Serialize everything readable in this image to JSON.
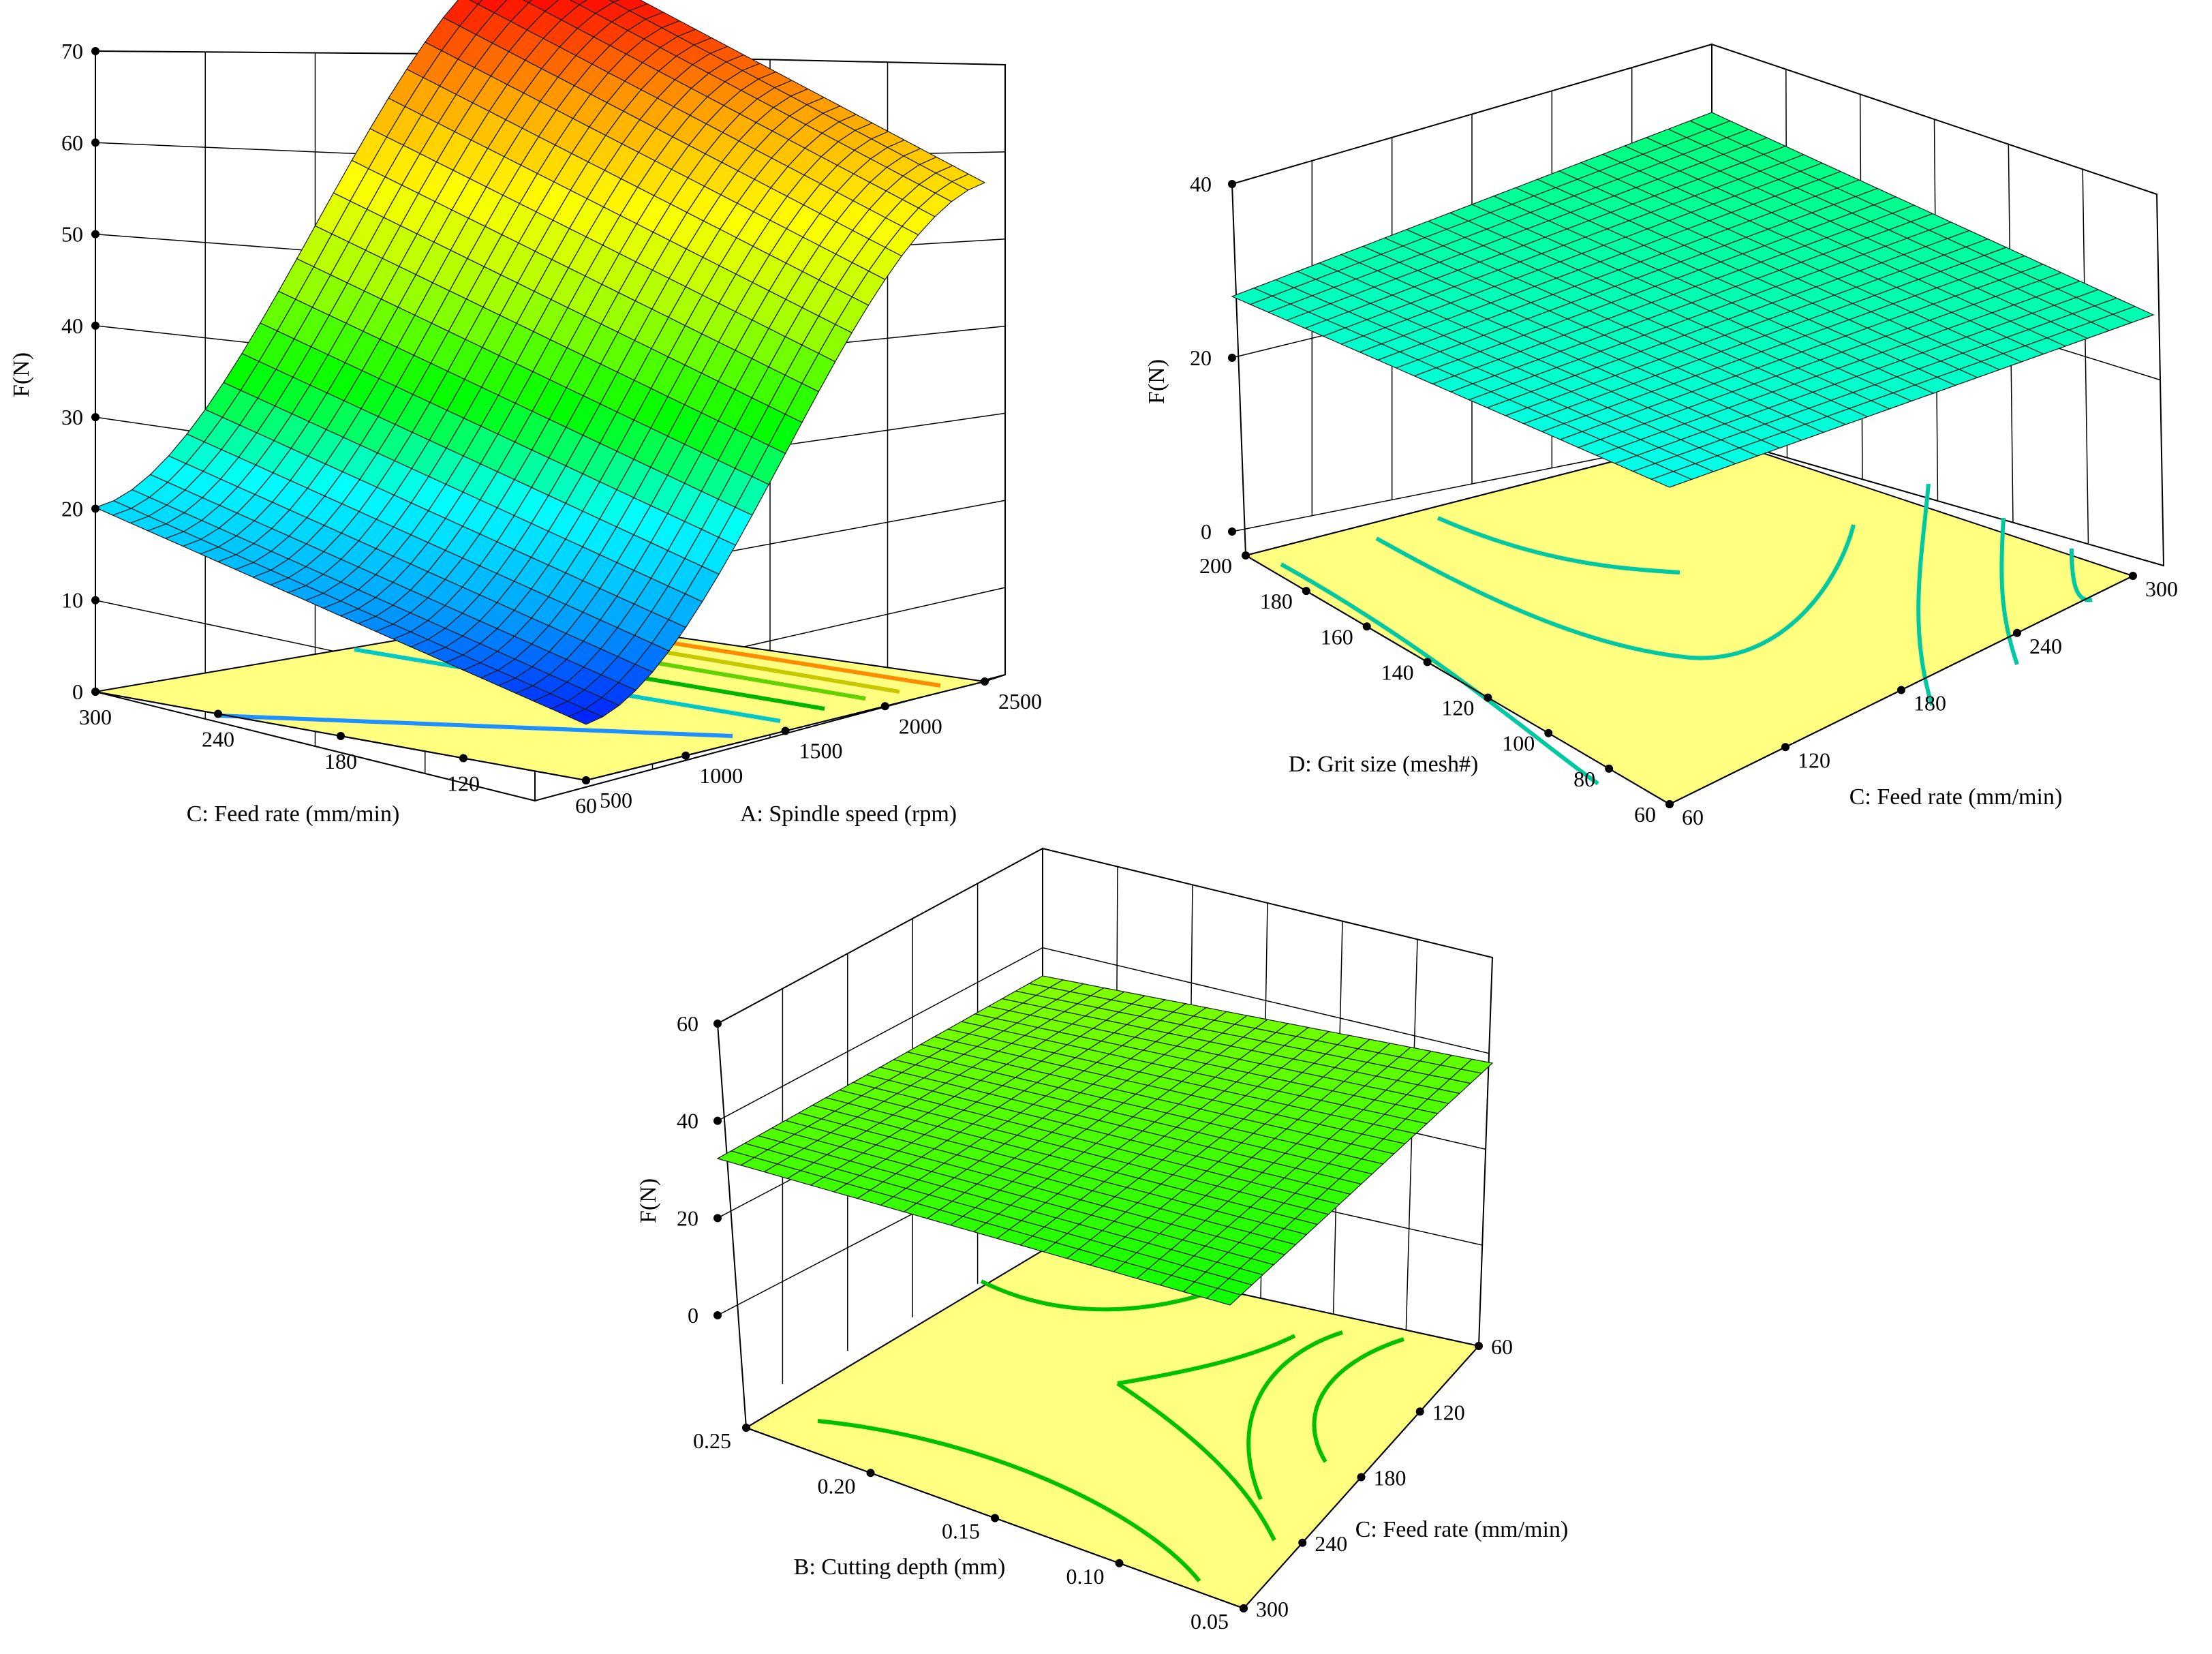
{
  "colors": {
    "floor": "#ffff80",
    "grid": "#000000",
    "mesh": "#1a1a1a",
    "ramp": [
      "#0000ff",
      "#00a0ff",
      "#00ffff",
      "#00ff00",
      "#a0ff00",
      "#ffff00",
      "#ffa000",
      "#ff0000"
    ]
  },
  "chart_data": [
    {
      "type": "surface3d",
      "zlabel": "F(N)",
      "zticks": [
        "0",
        "10",
        "20",
        "30",
        "40",
        "50",
        "60",
        "70"
      ],
      "zlim": [
        -10,
        70
      ],
      "xlabel": "C: Feed rate (mm/min)",
      "xticks": [
        "300",
        "240",
        "180",
        "120",
        "60"
      ],
      "ylabel": "A: Spindle speed (rpm)",
      "yticks": [
        "500",
        "1000",
        "1500",
        "2000",
        "2500"
      ],
      "surface_corners": [
        {
          "feed_rate": 300,
          "spindle_speed": 500,
          "F": 13
        },
        {
          "feed_rate": 60,
          "spindle_speed": 500,
          "F": -3
        },
        {
          "feed_rate": 60,
          "spindle_speed": 2500,
          "F": 67
        },
        {
          "feed_rate": 300,
          "spindle_speed": 2500,
          "F": 63
        }
      ],
      "colormap": "jet",
      "contour_floor": true
    },
    {
      "type": "surface3d",
      "zlabel": "F(N)",
      "zticks": [
        "0",
        "20",
        "40"
      ],
      "zlim": [
        -20,
        40
      ],
      "xlabel": "D: Grit size (mesh#)",
      "xticks": [
        "200",
        "180",
        "160",
        "140",
        "120",
        "100",
        "80",
        "60"
      ],
      "ylabel": "C: Feed rate (mm/min)",
      "yticks": [
        "60",
        "120",
        "180",
        "240",
        "300"
      ],
      "surface_corners": [
        {
          "grit_size": 200,
          "feed_rate": 60,
          "F": 20
        },
        {
          "grit_size": 60,
          "feed_rate": 60,
          "F": 14
        },
        {
          "grit_size": 60,
          "feed_rate": 300,
          "F": 22
        },
        {
          "grit_size": 200,
          "feed_rate": 300,
          "F": 31
        }
      ],
      "colormap": "jet",
      "contour_floor": true
    },
    {
      "type": "surface3d",
      "zlabel": "F(N)",
      "zticks": [
        "0",
        "20",
        "40",
        "60"
      ],
      "zlim": [
        -20,
        60
      ],
      "xlabel": "B: Cutting depth (mm)",
      "xticks": [
        "0.25",
        "0.20",
        "0.15",
        "0.10",
        "0.05"
      ],
      "ylabel": "C: Feed rate (mm/min)",
      "yticks": [
        "300",
        "240",
        "180",
        "120",
        "60"
      ],
      "surface_corners": [
        {
          "cutting_depth": 0.25,
          "feed_rate": 300,
          "F": 33
        },
        {
          "cutting_depth": 0.05,
          "feed_rate": 300,
          "F": 20
        },
        {
          "cutting_depth": 0.05,
          "feed_rate": 60,
          "F": 38
        },
        {
          "cutting_depth": 0.25,
          "feed_rate": 60,
          "F": 47
        }
      ],
      "colormap": "jet",
      "contour_floor": true
    }
  ]
}
